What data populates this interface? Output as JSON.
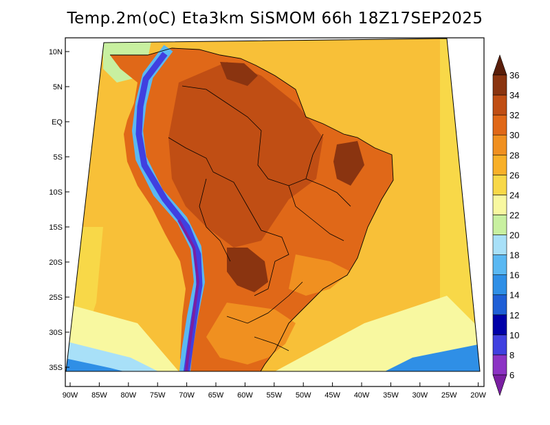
{
  "title": "Temp.2m(oC) Eta3km SiSMOM 66h 18Z17SEP2025",
  "lat_labels": [
    "10N",
    "5N",
    "EQ",
    "5S",
    "10S",
    "15S",
    "20S",
    "25S",
    "30S",
    "35S"
  ],
  "lon_labels": [
    "90W",
    "85W",
    "80W",
    "75W",
    "70W",
    "65W",
    "60W",
    "55W",
    "50W",
    "45W",
    "40W",
    "35W",
    "30W",
    "25W",
    "20W"
  ],
  "colorbar": {
    "labels": [
      "6",
      "8",
      "10",
      "12",
      "14",
      "16",
      "18",
      "20",
      "22",
      "24",
      "26",
      "28",
      "30",
      "32",
      "34",
      "36"
    ],
    "colors": [
      "#7a1fa2",
      "#8c33c4",
      "#4040e0",
      "#0000a8",
      "#1f5fd6",
      "#2f8fe6",
      "#5ab8f2",
      "#a8e0f8",
      "#c8f0a0",
      "#f8f8a0",
      "#f8d848",
      "#f8b028",
      "#f09020",
      "#e06818",
      "#c04e14",
      "#8a3410",
      "#5a1e0a"
    ]
  }
}
